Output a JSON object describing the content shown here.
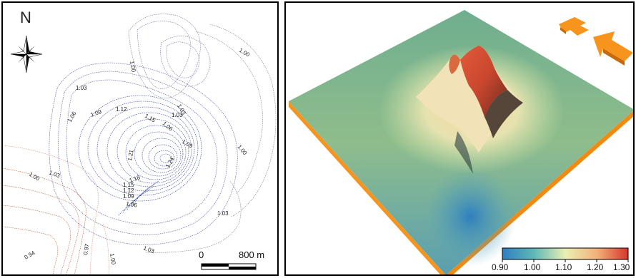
{
  "left_panel": {
    "north_label": "N",
    "contour_labels": [
      "1.00",
      "1.00",
      "1.03",
      "1.06",
      "1.09",
      "1.12",
      "1.15",
      "1.06",
      "1.03",
      "1.03",
      "1.09",
      "1.00",
      "1.21",
      "1.24",
      "1.00",
      "1.03",
      "1.18",
      "1.15",
      "1.12",
      "1.09",
      "1.06",
      "1.03",
      "0.94",
      "0.97",
      "1.00",
      "1.03"
    ],
    "scale_bar": {
      "start_label": "0",
      "end_label": "800 m"
    }
  },
  "right_panel": {
    "colorbar": {
      "ticks": [
        "0.90",
        "1.00",
        "1.10",
        "1.20",
        "1.30"
      ],
      "colors": [
        "#2e7fc0",
        "#5fb7b6",
        "#e9f0b4",
        "#f3b27a",
        "#d7352a"
      ]
    },
    "arrow_color": "#f7941d"
  }
}
